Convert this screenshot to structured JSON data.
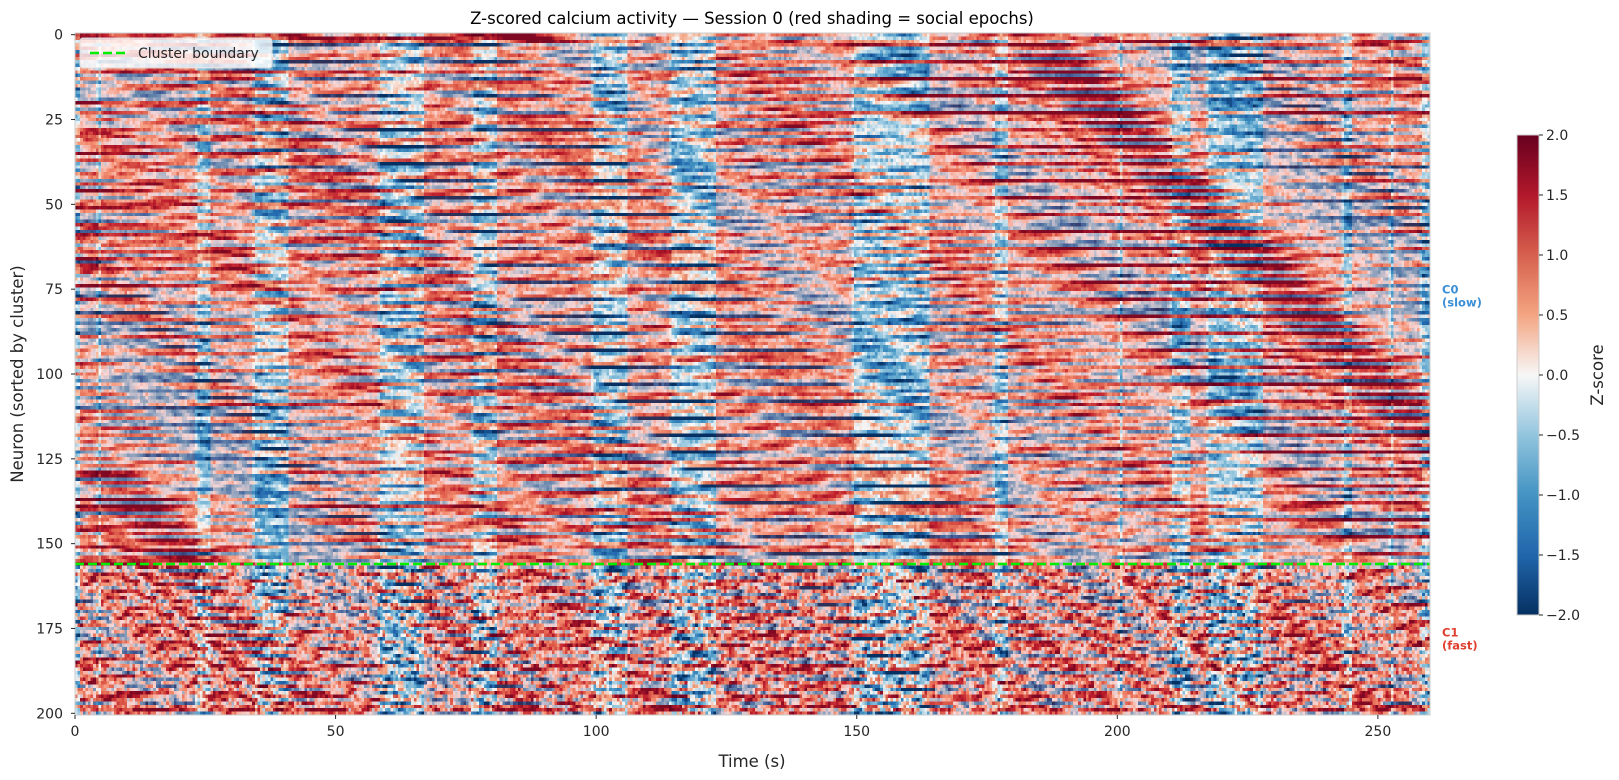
{
  "chart_data": {
    "type": "heatmap",
    "title": "Z-scored calcium activity — Session 0 (red shading = social epochs)",
    "xlabel": "Time (s)",
    "ylabel": "Neuron (sorted by cluster)",
    "xlim": [
      0,
      260
    ],
    "ylim": [
      201,
      0
    ],
    "xticks": [
      0,
      50,
      100,
      150,
      200,
      250
    ],
    "yticks": [
      0,
      25,
      50,
      75,
      100,
      125,
      150,
      175,
      200
    ],
    "n_neurons": 201,
    "grid": false,
    "colormap": "RdBu_r",
    "colorbar": {
      "label": "Z-score",
      "vmin": -2.0,
      "vmax": 2.0,
      "ticks": [
        "2.0",
        "1.5",
        "1.0",
        "0.5",
        "0.0",
        "−0.5",
        "−1.0",
        "−1.5",
        "−2.0"
      ],
      "tick_values": [
        2.0,
        1.5,
        1.0,
        0.5,
        0.0,
        -0.5,
        -1.0,
        -1.5,
        -2.0
      ]
    },
    "cluster_boundary": {
      "neuron_index": 156.5,
      "legend_label": "Cluster boundary",
      "color": "#00ee00",
      "legend_placement": "top-left"
    },
    "clusters": [
      {
        "label_line1": "C0",
        "label_line2": "(slow)",
        "center_neuron": 78,
        "color": "#3a8fd6"
      },
      {
        "label_line1": "C1",
        "label_line2": "(fast)",
        "center_neuron": 179,
        "color": "#e0402f"
      }
    ],
    "social_epochs_s": [
      [
        1,
        4
      ],
      [
        5,
        23
      ],
      [
        26,
        34
      ],
      [
        41,
        58
      ],
      [
        67,
        76
      ],
      [
        81,
        99
      ],
      [
        106,
        114
      ],
      [
        123,
        149
      ],
      [
        164,
        176
      ],
      [
        179,
        200
      ],
      [
        201,
        210
      ],
      [
        214,
        217
      ],
      [
        228,
        243
      ],
      [
        245,
        252
      ],
      [
        253,
        258
      ]
    ],
    "colors": {
      "neg_max": "#053061",
      "neg": "#2166ac",
      "neg_mid": "#4393c3",
      "neg_low": "#92c5de",
      "zero": "#f7f7f7",
      "pos_low": "#f4a582",
      "pos_mid": "#d6604d",
      "pos": "#b2182b",
      "pos_max": "#67001f",
      "social_shade": "#ff3030"
    }
  }
}
